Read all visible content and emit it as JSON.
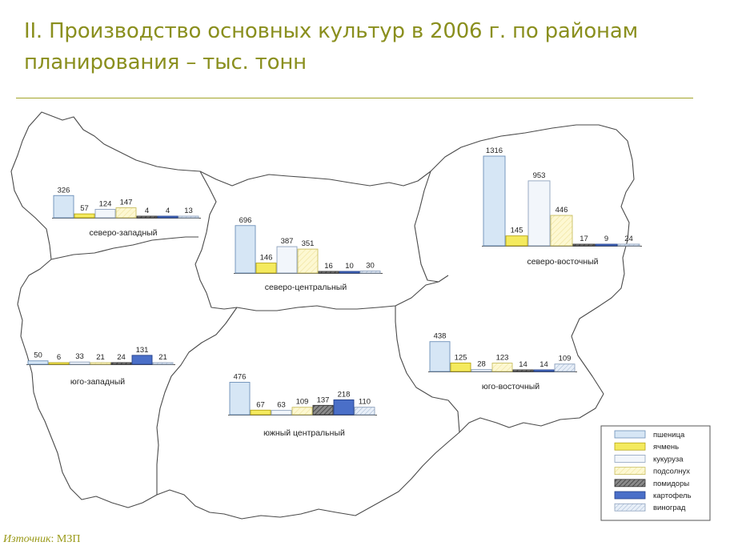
{
  "title": "II. Производство основных культур в 2006 г. по районам планирования – тыс. тонн",
  "source": {
    "label": "Източник",
    "value": ": МЗП"
  },
  "chart_data": {
    "type": "bar",
    "title": "II. Производство основных культур в 2006 г. по районам планирования – тыс. тонн",
    "unit": "тыс. тонн",
    "legend_position": "bottom-right",
    "series": [
      {
        "name": "пшеница",
        "color": "#d6e6f5"
      },
      {
        "name": "ячмень",
        "color": "#f4ea5e"
      },
      {
        "name": "кукуруза",
        "color": "#f2f6fb"
      },
      {
        "name": "подсолнух",
        "color": "#fbf5c4"
      },
      {
        "name": "помидоры",
        "color": "#6e6e6e"
      },
      {
        "name": "картофель",
        "color": "#4a6fc8"
      },
      {
        "name": "виноград",
        "color": "#e4ecf6"
      }
    ],
    "regions": [
      {
        "name": "северо-западный",
        "values": [
          326,
          57,
          124,
          147,
          4,
          4,
          13
        ]
      },
      {
        "name": "северо-центральный",
        "values": [
          696,
          146,
          387,
          351,
          16,
          10,
          30
        ]
      },
      {
        "name": "северо-восточный",
        "values": [
          1316,
          145,
          953,
          446,
          17,
          9,
          24
        ]
      },
      {
        "name": "юго-западный",
        "values": [
          50,
          6,
          33,
          21,
          24,
          131,
          21
        ]
      },
      {
        "name": "южный центральный",
        "values": [
          476,
          67,
          63,
          109,
          137,
          218,
          110
        ]
      },
      {
        "name": "юго-восточный",
        "values": [
          438,
          125,
          28,
          123,
          14,
          14,
          109
        ]
      }
    ]
  }
}
